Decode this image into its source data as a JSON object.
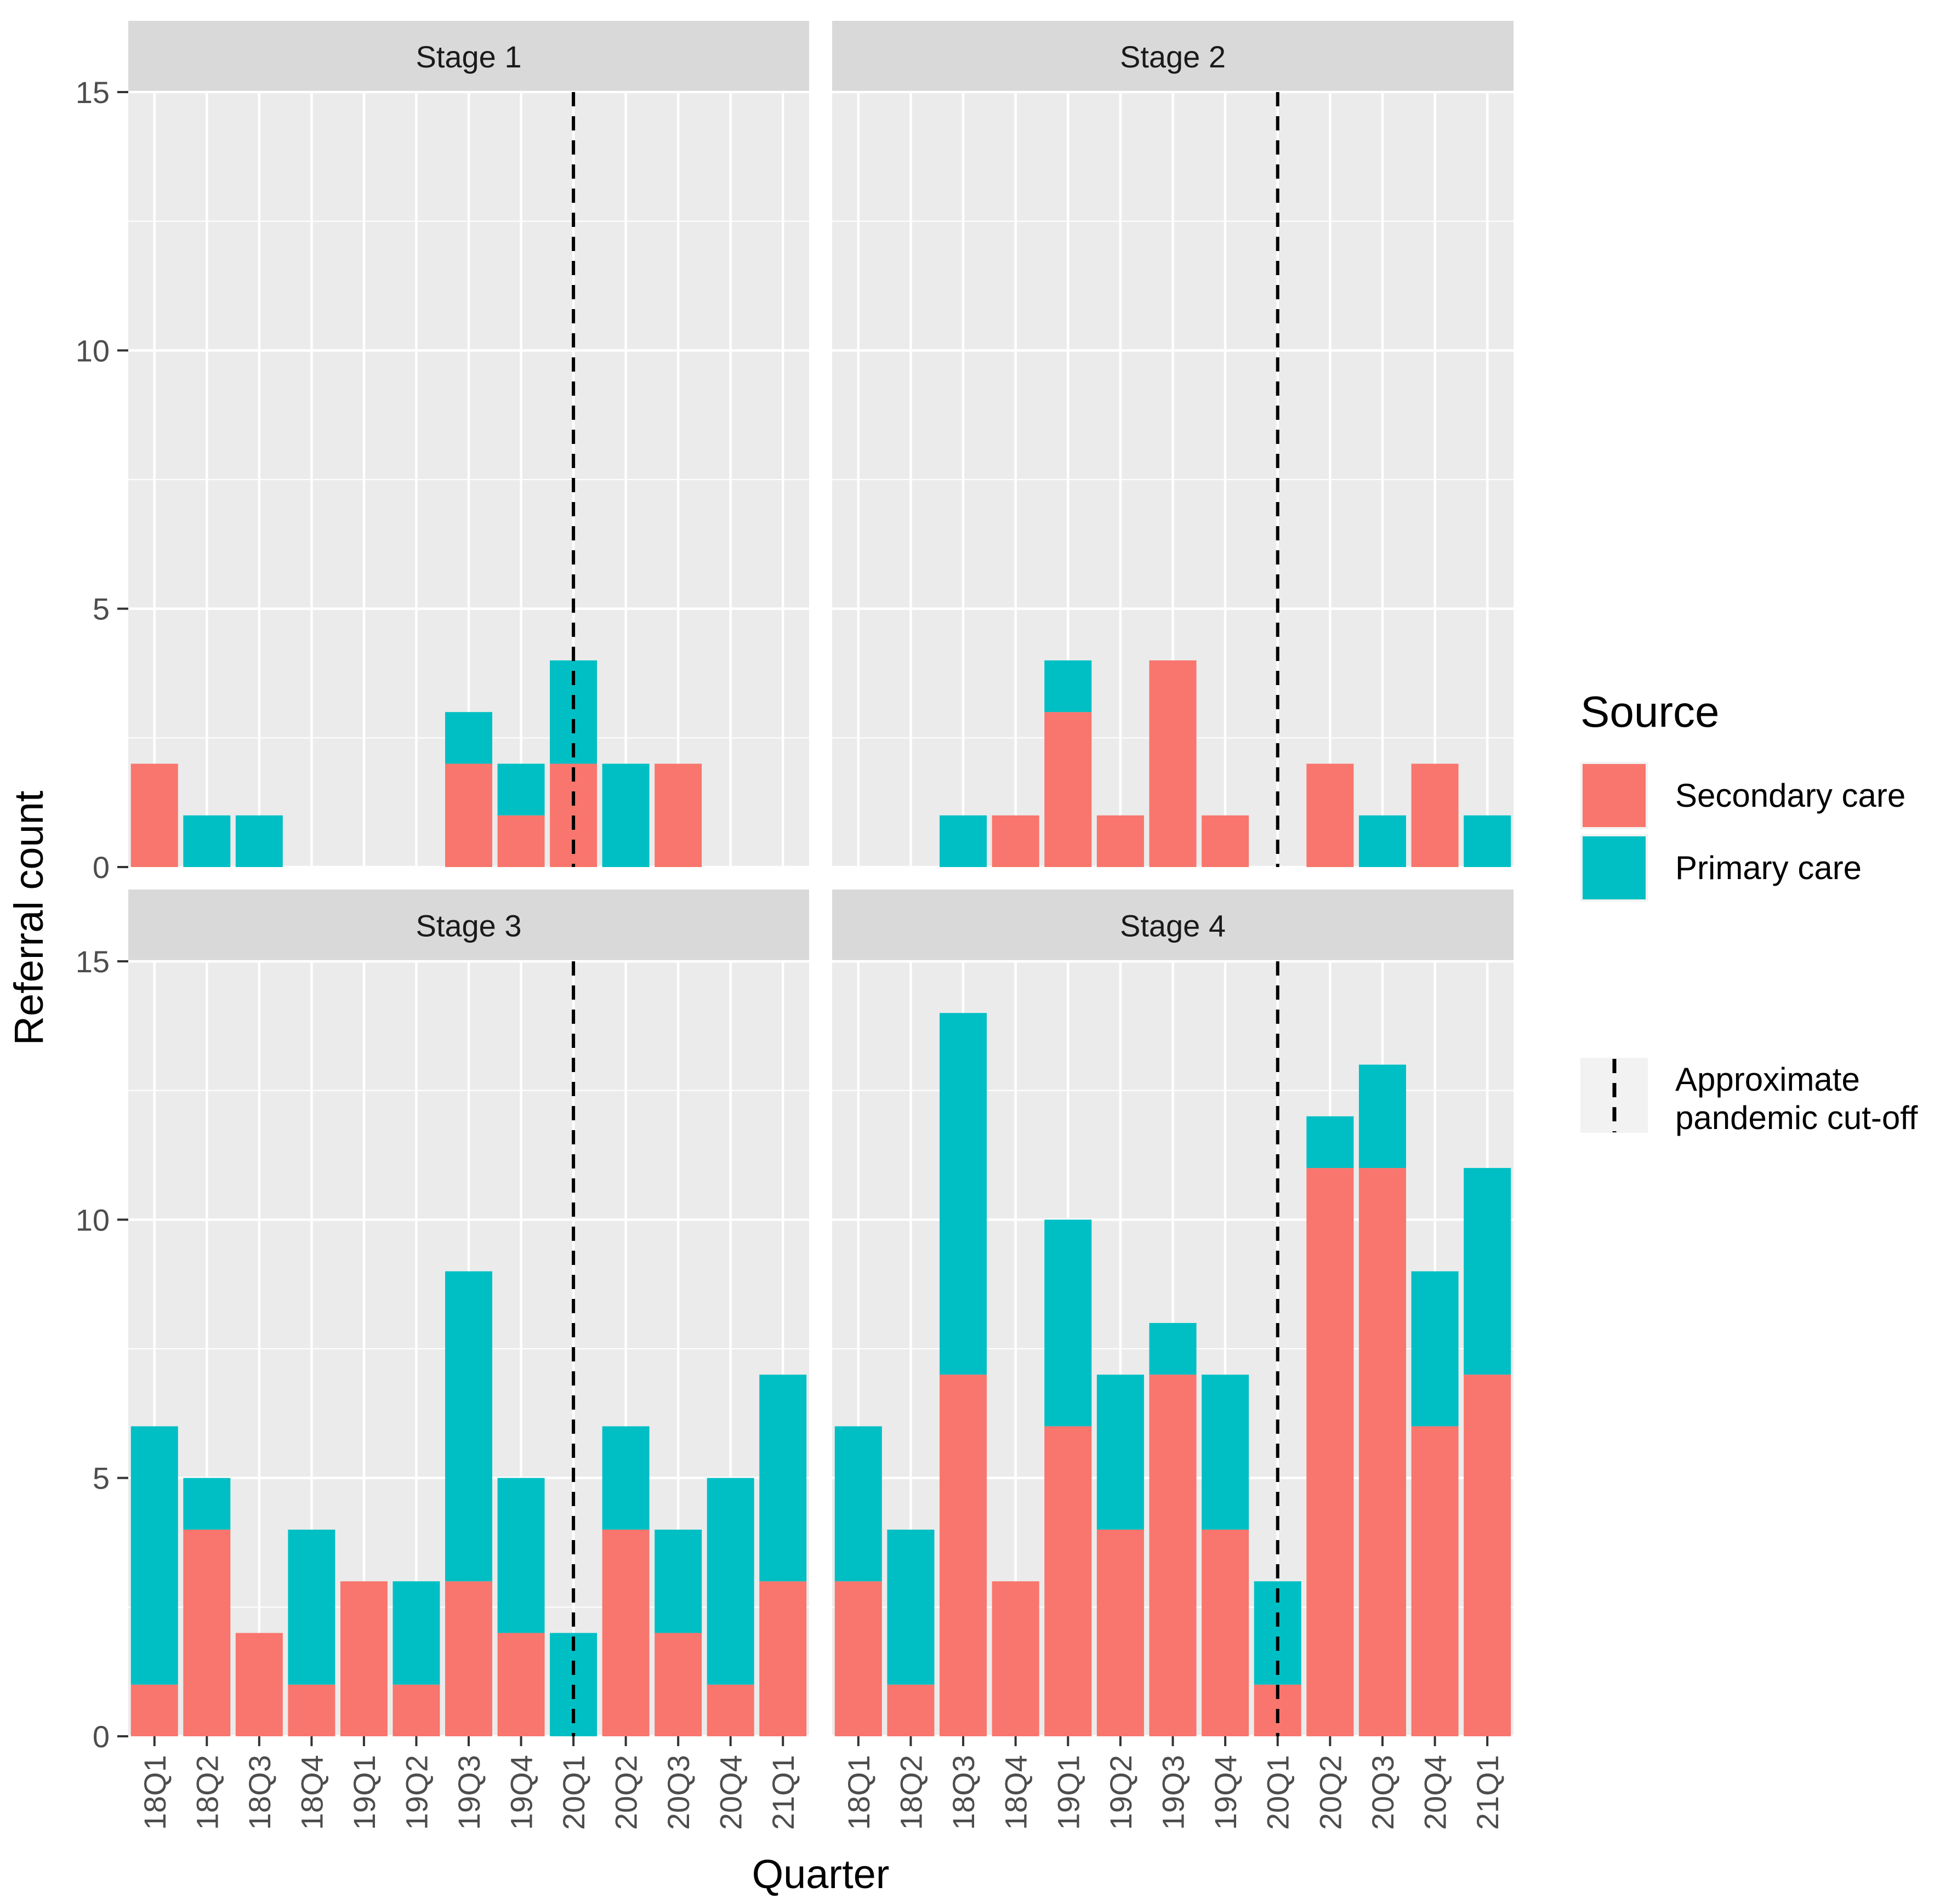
{
  "chart_data": {
    "type": "bar",
    "stacked": true,
    "layout": "facet-grid-2x2",
    "xlabel": "Quarter",
    "ylabel": "Referral count",
    "ylim": [
      0,
      15
    ],
    "y_ticks": [
      0,
      5,
      10,
      15
    ],
    "categories": [
      "18Q1",
      "18Q2",
      "18Q3",
      "18Q4",
      "19Q1",
      "19Q2",
      "19Q3",
      "19Q4",
      "20Q1",
      "20Q2",
      "20Q3",
      "20Q4",
      "21Q1"
    ],
    "cutoff_category": "20Q1",
    "legend": {
      "title": "Source",
      "items": [
        {
          "label": "Secondary care",
          "color": "#F8766D"
        },
        {
          "label": "Primary care",
          "color": "#00BFC4"
        }
      ],
      "line_label_1": "Approximate",
      "line_label_2": "pandemic cut-off",
      "placement": "right"
    },
    "panels": [
      {
        "title": "Stage 1",
        "series": [
          {
            "name": "Secondary care",
            "values": [
              2,
              0,
              0,
              0,
              0,
              0,
              2,
              1,
              2,
              0,
              2,
              0,
              0
            ]
          },
          {
            "name": "Primary care",
            "values": [
              0,
              1,
              1,
              0,
              0,
              0,
              1,
              1,
              2,
              2,
              0,
              0,
              0
            ]
          }
        ]
      },
      {
        "title": "Stage 2",
        "series": [
          {
            "name": "Secondary care",
            "values": [
              0,
              0,
              0,
              1,
              3,
              1,
              4,
              1,
              0,
              2,
              0,
              2,
              0
            ]
          },
          {
            "name": "Primary care",
            "values": [
              0,
              0,
              1,
              0,
              1,
              0,
              0,
              0,
              0,
              0,
              1,
              0,
              1
            ]
          }
        ]
      },
      {
        "title": "Stage 3",
        "series": [
          {
            "name": "Secondary care",
            "values": [
              1,
              4,
              2,
              1,
              3,
              1,
              3,
              2,
              0,
              4,
              2,
              1,
              3
            ]
          },
          {
            "name": "Primary care",
            "values": [
              5,
              1,
              0,
              3,
              0,
              2,
              6,
              3,
              2,
              2,
              2,
              4,
              4
            ]
          }
        ]
      },
      {
        "title": "Stage 4",
        "series": [
          {
            "name": "Secondary care",
            "values": [
              3,
              1,
              7,
              3,
              6,
              4,
              7,
              4,
              1,
              11,
              11,
              6,
              7
            ]
          },
          {
            "name": "Primary care",
            "values": [
              3,
              3,
              7,
              0,
              4,
              3,
              1,
              3,
              2,
              1,
              2,
              3,
              4
            ]
          }
        ]
      }
    ]
  }
}
